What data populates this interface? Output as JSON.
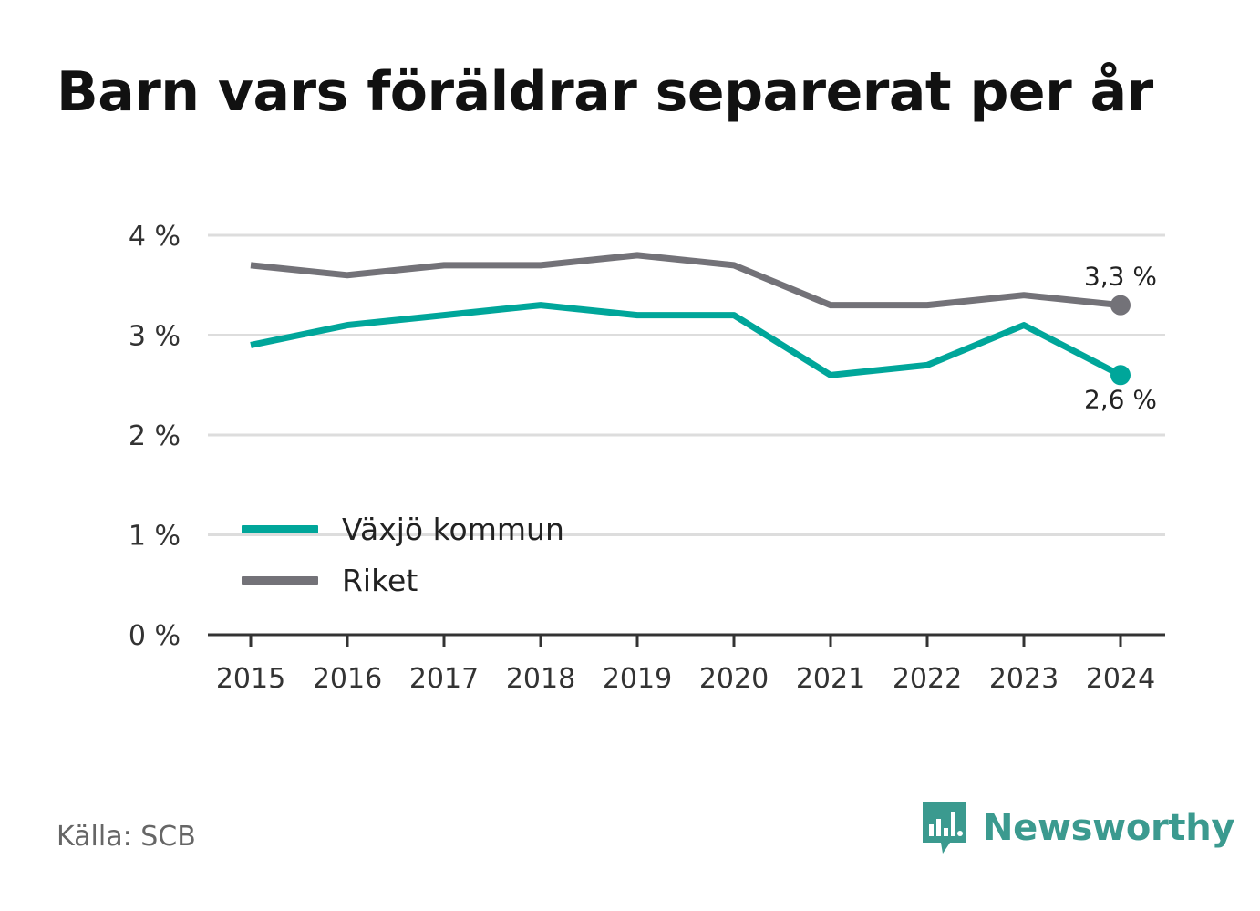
{
  "title": "Barn vars föräldrar separerat per år",
  "source": "Källa: SCB",
  "brand": {
    "name": "Newsworthy",
    "icon": "newsworthy-logo-icon",
    "color": "#3b9a8f"
  },
  "chart_data": {
    "type": "line",
    "title": "Barn vars föräldrar separerat per år",
    "xlabel": "",
    "ylabel": "",
    "categories": [
      "2015",
      "2016",
      "2017",
      "2018",
      "2019",
      "2020",
      "2021",
      "2022",
      "2023",
      "2024"
    ],
    "series": [
      {
        "name": "Växjö kommun",
        "color": "#00a69a",
        "values": [
          2.9,
          3.1,
          3.2,
          3.3,
          3.2,
          3.2,
          2.6,
          2.7,
          3.1,
          2.6
        ],
        "end_label": "2,6 %"
      },
      {
        "name": "Riket",
        "color": "#737278",
        "values": [
          3.7,
          3.6,
          3.7,
          3.7,
          3.8,
          3.7,
          3.3,
          3.3,
          3.4,
          3.3
        ],
        "end_label": "3,3 %"
      }
    ],
    "ylim": [
      0,
      4
    ],
    "yticks": [
      "0 %",
      "1 %",
      "2 %",
      "3 %",
      "4 %"
    ],
    "grid": true,
    "legend": "bottom-left inside plot"
  }
}
